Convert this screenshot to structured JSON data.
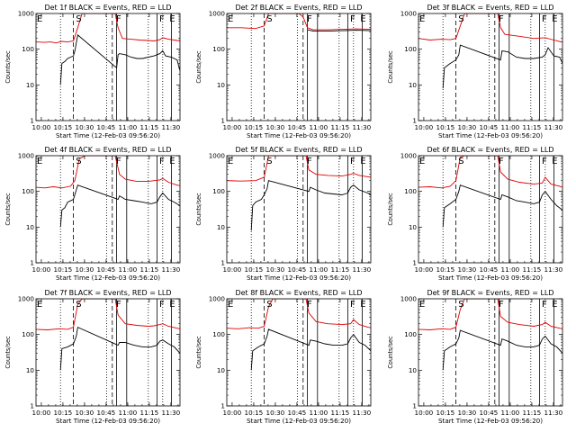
{
  "figure": {
    "title_suffix": "BLACK = Events, RED = LLD",
    "detectors": [
      "Det 1f",
      "Det 2f",
      "Det 3f",
      "Det 4f",
      "Det 5f",
      "Det 6f",
      "Det 7f",
      "Det 8f",
      "Det 9f"
    ],
    "x_tick_labels": [
      "10:00",
      "10:15",
      "10:30",
      "10:45",
      "11:00",
      "11:15",
      "11:30"
    ],
    "y_tick_labels": [
      "1",
      "10",
      "100",
      "1000"
    ],
    "xlabel": "Start Time (12-Feb-03 09:56:20)",
    "ylabel": "Counts/sec",
    "markers": [
      {
        "label": "E",
        "time_min": 0
      },
      {
        "label": "S",
        "time_min": 27
      },
      {
        "label": "F",
        "time_min": 55
      },
      {
        "label": "F",
        "time_min": 85
      },
      {
        "label": "E",
        "time_min": 92
      }
    ],
    "dotted_lines_min": [
      17,
      49,
      78,
      88
    ],
    "dashed_lines_min": [
      26,
      53
    ],
    "solid_lines_min": [
      56,
      63,
      84,
      94
    ],
    "colors": {
      "events": "#000000",
      "lld": "#e00000",
      "axes": "#000000"
    }
  },
  "chart_data": {
    "type": "line",
    "layout": "3x3 grid of identical-axis panels",
    "x_unit": "minutes after 09:56:20",
    "xlim": [
      0,
      100
    ],
    "ylim": [
      1,
      1000
    ],
    "yscale": "log",
    "panels": [
      {
        "title": "Det 1f",
        "series": [
          {
            "name": "LLD (red)",
            "x": [
              0,
              6,
              10,
              14,
              18,
              22,
              26,
              29,
              32,
              36,
              40,
              44,
              48,
              52,
              55,
              57,
              60,
              66,
              72,
              78,
              82,
              86,
              88,
              92,
              98,
              102
            ],
            "y": [
              160,
              155,
              160,
              150,
              165,
              160,
              170,
              400,
              1000,
              1000,
              1000,
              1000,
              1000,
              1000,
              1000,
              400,
              200,
              190,
              180,
              175,
              170,
              185,
              210,
              190,
              175,
              170
            ]
          },
          {
            "name": "Events (black)",
            "x": [
              17,
              18,
              20,
              22,
              24,
              26,
              27,
              28,
              29,
              56,
              57,
              58,
              62,
              66,
              70,
              74,
              78,
              82,
              86,
              88,
              90,
              94,
              96,
              98,
              100,
              102
            ],
            "y": [
              10,
              40,
              45,
              55,
              60,
              65,
              90,
              150,
              250,
              30,
              70,
              75,
              70,
              60,
              55,
              55,
              60,
              65,
              75,
              90,
              65,
              60,
              55,
              50,
              25,
              15
            ]
          }
        ]
      },
      {
        "title": "Det 2f",
        "series": [
          {
            "name": "LLD (red)",
            "x": [
              0,
              10,
              20,
              26,
              29,
              32,
              40,
              50,
              53,
              56,
              60,
              70,
              80,
              90,
              100,
              102
            ],
            "y": [
              400,
              400,
              380,
              450,
              1000,
              1000,
              1000,
              1000,
              800,
              400,
              350,
              350,
              360,
              370,
              360,
              350
            ]
          },
          {
            "name": "Events (black)",
            "x": [
              56,
              60,
              70,
              80,
              90,
              100,
              102
            ],
            "y": [
              350,
              320,
              320,
              330,
              340,
              330,
              320
            ]
          }
        ]
      },
      {
        "title": "Det 3f",
        "series": [
          {
            "name": "LLD (red)",
            "x": [
              0,
              8,
              16,
              22,
              26,
              29,
              32,
              40,
              50,
              55,
              57,
              60,
              70,
              80,
              88,
              94,
              102
            ],
            "y": [
              200,
              180,
              190,
              185,
              200,
              450,
              1000,
              1000,
              1000,
              1000,
              400,
              260,
              230,
              200,
              210,
              180,
              150
            ]
          },
          {
            "name": "Events (black)",
            "x": [
              17,
              18,
              22,
              26,
              28,
              29,
              57,
              58,
              62,
              68,
              74,
              80,
              86,
              88,
              90,
              94,
              98,
              100,
              102
            ],
            "y": [
              8,
              30,
              40,
              50,
              70,
              130,
              50,
              90,
              85,
              60,
              55,
              55,
              60,
              70,
              110,
              65,
              60,
              40,
              20
            ]
          }
        ]
      },
      {
        "title": "Det 4f",
        "series": [
          {
            "name": "LLD (red)",
            "x": [
              0,
              6,
              12,
              18,
              24,
              27,
              30,
              34,
              42,
              50,
              55,
              58,
              62,
              70,
              78,
              82,
              86,
              88,
              92,
              98,
              102
            ],
            "y": [
              130,
              125,
              135,
              125,
              140,
              200,
              800,
              1000,
              1000,
              1000,
              1000,
              300,
              220,
              190,
              190,
              200,
              210,
              230,
              180,
              150,
              140
            ]
          },
          {
            "name": "Events (black)",
            "x": [
              17,
              18,
              20,
              22,
              26,
              28,
              29,
              57,
              58,
              62,
              68,
              74,
              80,
              84,
              86,
              88,
              92,
              96,
              100,
              102
            ],
            "y": [
              10,
              30,
              35,
              50,
              60,
              110,
              150,
              60,
              75,
              60,
              55,
              50,
              45,
              50,
              70,
              90,
              60,
              50,
              40,
              20
            ]
          }
        ]
      },
      {
        "title": "Det 5f",
        "series": [
          {
            "name": "LLD (red)",
            "x": [
              0,
              10,
              20,
              26,
              29,
              32,
              40,
              50,
              55,
              57,
              62,
              70,
              80,
              86,
              88,
              92,
              100,
              102
            ],
            "y": [
              200,
              195,
              200,
              250,
              1000,
              1000,
              1000,
              1000,
              1000,
              400,
              300,
              280,
              270,
              300,
              320,
              280,
              250,
              240
            ]
          },
          {
            "name": "Events (black)",
            "x": [
              17,
              18,
              20,
              24,
              26,
              28,
              29,
              57,
              58,
              62,
              68,
              74,
              80,
              84,
              86,
              88,
              92,
              98,
              102
            ],
            "y": [
              8,
              40,
              50,
              60,
              80,
              120,
              200,
              100,
              130,
              110,
              90,
              85,
              80,
              90,
              130,
              150,
              110,
              90,
              70
            ]
          }
        ]
      },
      {
        "title": "Det 6f",
        "series": [
          {
            "name": "LLD (red)",
            "x": [
              0,
              8,
              16,
              22,
              26,
              29,
              32,
              40,
              50,
              55,
              57,
              62,
              70,
              80,
              86,
              88,
              92,
              98,
              102
            ],
            "y": [
              130,
              135,
              125,
              140,
              200,
              900,
              1000,
              1000,
              1000,
              1000,
              350,
              220,
              180,
              160,
              170,
              250,
              160,
              140,
              120
            ]
          },
          {
            "name": "Events (black)",
            "x": [
              17,
              18,
              22,
              26,
              28,
              29,
              57,
              58,
              62,
              68,
              74,
              80,
              84,
              86,
              88,
              92,
              96,
              100,
              102
            ],
            "y": [
              10,
              35,
              45,
              60,
              100,
              150,
              60,
              80,
              70,
              55,
              50,
              45,
              50,
              80,
              100,
              60,
              40,
              30,
              15
            ]
          }
        ]
      },
      {
        "title": "Det 7f",
        "series": [
          {
            "name": "LLD (red)",
            "x": [
              0,
              8,
              16,
              22,
              26,
              29,
              32,
              40,
              50,
              55,
              57,
              62,
              70,
              78,
              82,
              86,
              88,
              92,
              98,
              102
            ],
            "y": [
              140,
              135,
              145,
              140,
              160,
              700,
              1000,
              1000,
              1000,
              1000,
              350,
              200,
              180,
              170,
              175,
              190,
              200,
              170,
              150,
              140
            ]
          },
          {
            "name": "Events (black)",
            "x": [
              17,
              18,
              22,
              26,
              28,
              29,
              57,
              58,
              62,
              68,
              74,
              80,
              84,
              86,
              88,
              92,
              96,
              100,
              102
            ],
            "y": [
              10,
              40,
              45,
              55,
              90,
              160,
              50,
              60,
              60,
              50,
              45,
              45,
              50,
              65,
              70,
              55,
              45,
              30,
              15
            ]
          }
        ]
      },
      {
        "title": "Det 8f",
        "series": [
          {
            "name": "LLD (red)",
            "x": [
              0,
              8,
              16,
              22,
              26,
              29,
              32,
              40,
              50,
              55,
              57,
              62,
              70,
              80,
              86,
              88,
              92,
              98,
              102
            ],
            "y": [
              150,
              145,
              155,
              150,
              170,
              600,
              1000,
              1000,
              1000,
              1000,
              400,
              230,
              200,
              190,
              200,
              260,
              190,
              160,
              150
            ]
          },
          {
            "name": "Events (black)",
            "x": [
              17,
              18,
              22,
              26,
              28,
              29,
              57,
              58,
              62,
              68,
              74,
              80,
              84,
              86,
              88,
              92,
              96,
              100,
              102
            ],
            "y": [
              10,
              35,
              45,
              55,
              90,
              140,
              50,
              70,
              65,
              55,
              50,
              50,
              55,
              80,
              100,
              60,
              50,
              35,
              20
            ]
          }
        ]
      },
      {
        "title": "Det 9f",
        "series": [
          {
            "name": "LLD (red)",
            "x": [
              0,
              8,
              16,
              22,
              26,
              29,
              32,
              40,
              50,
              55,
              57,
              62,
              70,
              80,
              86,
              88,
              92,
              98,
              102
            ],
            "y": [
              140,
              135,
              145,
              140,
              160,
              500,
              1000,
              1000,
              1000,
              1000,
              320,
              220,
              190,
              170,
              190,
              220,
              170,
              150,
              140
            ]
          },
          {
            "name": "Events (black)",
            "x": [
              17,
              18,
              22,
              26,
              28,
              29,
              57,
              58,
              62,
              68,
              74,
              80,
              84,
              86,
              88,
              92,
              96,
              100,
              102
            ],
            "y": [
              10,
              35,
              45,
              55,
              80,
              130,
              50,
              75,
              65,
              50,
              45,
              45,
              50,
              75,
              90,
              55,
              45,
              30,
              15
            ]
          }
        ]
      }
    ]
  }
}
